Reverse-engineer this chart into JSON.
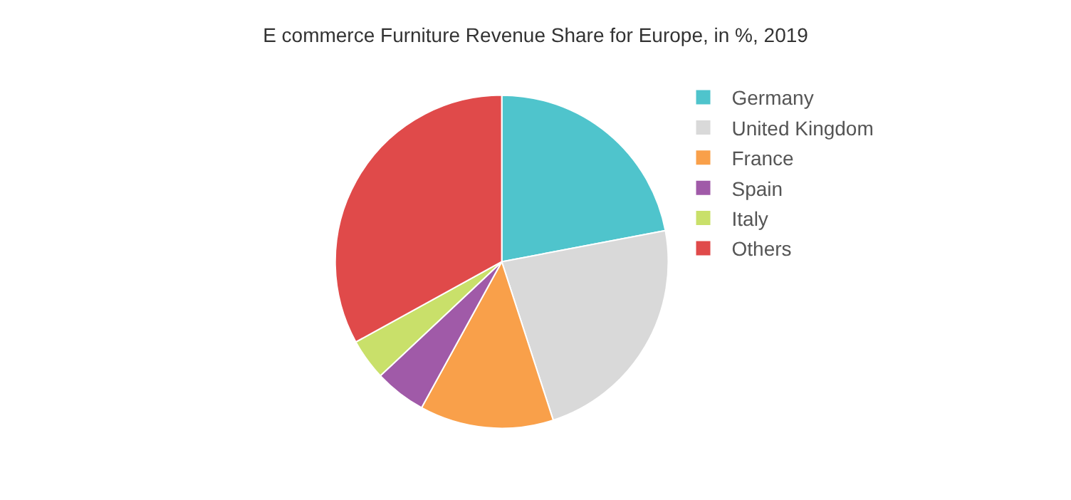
{
  "chart_data": {
    "type": "pie",
    "title": "E commerce Furniture Revenue Share for Europe, in %, 2019",
    "categories": [
      "Germany",
      "United Kingdom",
      "France",
      "Spain",
      "Italy",
      "Others"
    ],
    "values": [
      22,
      23,
      13,
      5,
      4,
      33
    ],
    "colors": [
      "#4fc4cc",
      "#d9d9d9",
      "#f9a04a",
      "#a05aa8",
      "#c9e06a",
      "#e04a4a"
    ],
    "legend": "right"
  }
}
